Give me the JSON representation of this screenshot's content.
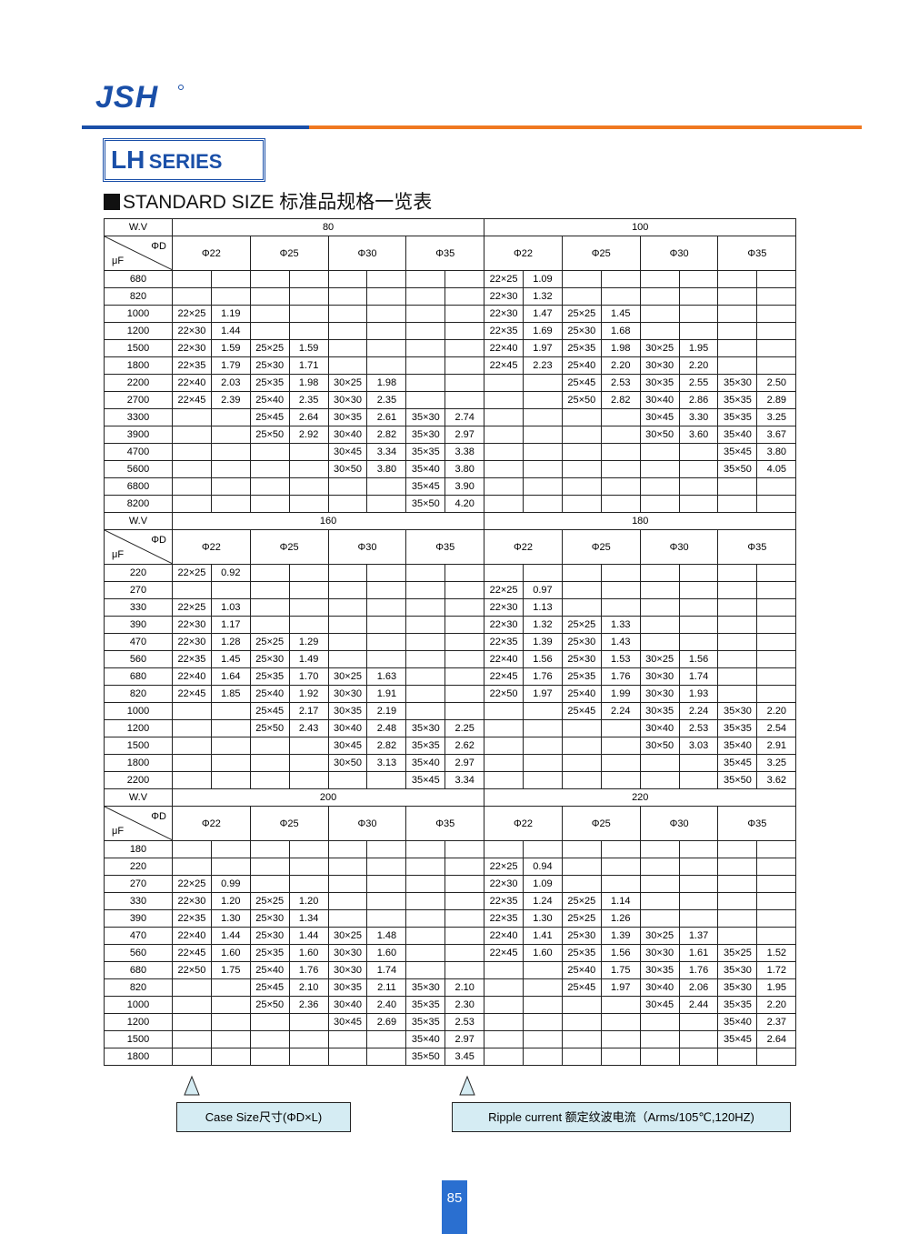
{
  "header": {
    "logo": "JSH",
    "series_main": "LH",
    "series_sub": "SERIES",
    "title": "STANDARD SIZE 标准品规格一览表"
  },
  "table": {
    "wv_label": "W.V",
    "d_label": "ΦD",
    "uf_label": "μF",
    "diameters": [
      "Φ22",
      "Φ25",
      "Φ30",
      "Φ35"
    ],
    "blocks": [
      {
        "wv": [
          "80",
          "100"
        ],
        "rows": [
          {
            "uf": "680",
            "cells": [
              null,
              null,
              null,
              null,
              [
                "22×25",
                "1.09"
              ],
              null,
              null,
              null
            ]
          },
          {
            "uf": "820",
            "cells": [
              null,
              null,
              null,
              null,
              [
                "22×30",
                "1.32"
              ],
              null,
              null,
              null
            ]
          },
          {
            "uf": "1000",
            "cells": [
              [
                "22×25",
                "1.19"
              ],
              null,
              null,
              null,
              [
                "22×30",
                "1.47"
              ],
              [
                "25×25",
                "1.45"
              ],
              null,
              null
            ]
          },
          {
            "uf": "1200",
            "cells": [
              [
                "22×30",
                "1.44"
              ],
              null,
              null,
              null,
              [
                "22×35",
                "1.69"
              ],
              [
                "25×30",
                "1.68"
              ],
              null,
              null
            ]
          },
          {
            "uf": "1500",
            "cells": [
              [
                "22×30",
                "1.59"
              ],
              [
                "25×25",
                "1.59"
              ],
              null,
              null,
              [
                "22×40",
                "1.97"
              ],
              [
                "25×35",
                "1.98"
              ],
              [
                "30×25",
                "1.95"
              ],
              null
            ]
          },
          {
            "uf": "1800",
            "cells": [
              [
                "22×35",
                "1.79"
              ],
              [
                "25×30",
                "1.71"
              ],
              null,
              null,
              [
                "22×45",
                "2.23"
              ],
              [
                "25×40",
                "2.20"
              ],
              [
                "30×30",
                "2.20"
              ],
              null
            ]
          },
          {
            "uf": "2200",
            "cells": [
              [
                "22×40",
                "2.03"
              ],
              [
                "25×35",
                "1.98"
              ],
              [
                "30×25",
                "1.98"
              ],
              null,
              null,
              [
                "25×45",
                "2.53"
              ],
              [
                "30×35",
                "2.55"
              ],
              [
                "35×30",
                "2.50"
              ]
            ]
          },
          {
            "uf": "2700",
            "cells": [
              [
                "22×45",
                "2.39"
              ],
              [
                "25×40",
                "2.35"
              ],
              [
                "30×30",
                "2.35"
              ],
              null,
              null,
              [
                "25×50",
                "2.82"
              ],
              [
                "30×40",
                "2.86"
              ],
              [
                "35×35",
                "2.89"
              ]
            ]
          },
          {
            "uf": "3300",
            "cells": [
              null,
              [
                "25×45",
                "2.64"
              ],
              [
                "30×35",
                "2.61"
              ],
              [
                "35×30",
                "2.74"
              ],
              null,
              null,
              [
                "30×45",
                "3.30"
              ],
              [
                "35×35",
                "3.25"
              ]
            ]
          },
          {
            "uf": "3900",
            "cells": [
              null,
              [
                "25×50",
                "2.92"
              ],
              [
                "30×40",
                "2.82"
              ],
              [
                "35×30",
                "2.97"
              ],
              null,
              null,
              [
                "30×50",
                "3.60"
              ],
              [
                "35×40",
                "3.67"
              ]
            ]
          },
          {
            "uf": "4700",
            "cells": [
              null,
              null,
              [
                "30×45",
                "3.34"
              ],
              [
                "35×35",
                "3.38"
              ],
              null,
              null,
              null,
              [
                "35×45",
                "3.80"
              ]
            ]
          },
          {
            "uf": "5600",
            "cells": [
              null,
              null,
              [
                "30×50",
                "3.80"
              ],
              [
                "35×40",
                "3.80"
              ],
              null,
              null,
              null,
              [
                "35×50",
                "4.05"
              ]
            ]
          },
          {
            "uf": "6800",
            "cells": [
              null,
              null,
              null,
              [
                "35×45",
                "3.90"
              ],
              null,
              null,
              null,
              null
            ]
          },
          {
            "uf": "8200",
            "cells": [
              null,
              null,
              null,
              [
                "35×50",
                "4.20"
              ],
              null,
              null,
              null,
              null
            ]
          }
        ]
      },
      {
        "wv": [
          "160",
          "180"
        ],
        "rows": [
          {
            "uf": "220",
            "cells": [
              [
                "22×25",
                "0.92"
              ],
              null,
              null,
              null,
              null,
              null,
              null,
              null
            ]
          },
          {
            "uf": "270",
            "cells": [
              null,
              null,
              null,
              null,
              [
                "22×25",
                "0.97"
              ],
              null,
              null,
              null
            ]
          },
          {
            "uf": "330",
            "cells": [
              [
                "22×25",
                "1.03"
              ],
              null,
              null,
              null,
              [
                "22×30",
                "1.13"
              ],
              null,
              null,
              null
            ]
          },
          {
            "uf": "390",
            "cells": [
              [
                "22×30",
                "1.17"
              ],
              null,
              null,
              null,
              [
                "22×30",
                "1.32"
              ],
              [
                "25×25",
                "1.33"
              ],
              null,
              null
            ]
          },
          {
            "uf": "470",
            "cells": [
              [
                "22×30",
                "1.28"
              ],
              [
                "25×25",
                "1.29"
              ],
              null,
              null,
              [
                "22×35",
                "1.39"
              ],
              [
                "25×30",
                "1.43"
              ],
              null,
              null
            ]
          },
          {
            "uf": "560",
            "cells": [
              [
                "22×35",
                "1.45"
              ],
              [
                "25×30",
                "1.49"
              ],
              null,
              null,
              [
                "22×40",
                "1.56"
              ],
              [
                "25×30",
                "1.53"
              ],
              [
                "30×25",
                "1.56"
              ],
              null
            ]
          },
          {
            "uf": "680",
            "cells": [
              [
                "22×40",
                "1.64"
              ],
              [
                "25×35",
                "1.70"
              ],
              [
                "30×25",
                "1.63"
              ],
              null,
              [
                "22×45",
                "1.76"
              ],
              [
                "25×35",
                "1.76"
              ],
              [
                "30×30",
                "1.74"
              ],
              null
            ]
          },
          {
            "uf": "820",
            "cells": [
              [
                "22×45",
                "1.85"
              ],
              [
                "25×40",
                "1.92"
              ],
              [
                "30×30",
                "1.91"
              ],
              null,
              [
                "22×50",
                "1.97"
              ],
              [
                "25×40",
                "1.99"
              ],
              [
                "30×30",
                "1.93"
              ],
              null
            ]
          },
          {
            "uf": "1000",
            "cells": [
              null,
              [
                "25×45",
                "2.17"
              ],
              [
                "30×35",
                "2.19"
              ],
              null,
              null,
              [
                "25×45",
                "2.24"
              ],
              [
                "30×35",
                "2.24"
              ],
              [
                "35×30",
                "2.20"
              ]
            ]
          },
          {
            "uf": "1200",
            "cells": [
              null,
              [
                "25×50",
                "2.43"
              ],
              [
                "30×40",
                "2.48"
              ],
              [
                "35×30",
                "2.25"
              ],
              null,
              null,
              [
                "30×40",
                "2.53"
              ],
              [
                "35×35",
                "2.54"
              ]
            ]
          },
          {
            "uf": "1500",
            "cells": [
              null,
              null,
              [
                "30×45",
                "2.82"
              ],
              [
                "35×35",
                "2.62"
              ],
              null,
              null,
              [
                "30×50",
                "3.03"
              ],
              [
                "35×40",
                "2.91"
              ]
            ]
          },
          {
            "uf": "1800",
            "cells": [
              null,
              null,
              [
                "30×50",
                "3.13"
              ],
              [
                "35×40",
                "2.97"
              ],
              null,
              null,
              null,
              [
                "35×45",
                "3.25"
              ]
            ]
          },
          {
            "uf": "2200",
            "cells": [
              null,
              null,
              null,
              [
                "35×45",
                "3.34"
              ],
              null,
              null,
              null,
              [
                "35×50",
                "3.62"
              ]
            ]
          }
        ]
      },
      {
        "wv": [
          "200",
          "220"
        ],
        "rows": [
          {
            "uf": "180",
            "cells": [
              null,
              null,
              null,
              null,
              null,
              null,
              null,
              null
            ]
          },
          {
            "uf": "220",
            "cells": [
              null,
              null,
              null,
              null,
              [
                "22×25",
                "0.94"
              ],
              null,
              null,
              null
            ]
          },
          {
            "uf": "270",
            "cells": [
              [
                "22×25",
                "0.99"
              ],
              null,
              null,
              null,
              [
                "22×30",
                "1.09"
              ],
              null,
              null,
              null
            ]
          },
          {
            "uf": "330",
            "cells": [
              [
                "22×30",
                "1.20"
              ],
              [
                "25×25",
                "1.20"
              ],
              null,
              null,
              [
                "22×35",
                "1.24"
              ],
              [
                "25×25",
                "1.14"
              ],
              null,
              null
            ]
          },
          {
            "uf": "390",
            "cells": [
              [
                "22×35",
                "1.30"
              ],
              [
                "25×30",
                "1.34"
              ],
              null,
              null,
              [
                "22×35",
                "1.30"
              ],
              [
                "25×25",
                "1.26"
              ],
              null,
              null
            ]
          },
          {
            "uf": "470",
            "cells": [
              [
                "22×40",
                "1.44"
              ],
              [
                "25×30",
                "1.44"
              ],
              [
                "30×25",
                "1.48"
              ],
              null,
              [
                "22×40",
                "1.41"
              ],
              [
                "25×30",
                "1.39"
              ],
              [
                "30×25",
                "1.37"
              ],
              null
            ]
          },
          {
            "uf": "560",
            "cells": [
              [
                "22×45",
                "1.60"
              ],
              [
                "25×35",
                "1.60"
              ],
              [
                "30×30",
                "1.60"
              ],
              null,
              [
                "22×45",
                "1.60"
              ],
              [
                "25×35",
                "1.56"
              ],
              [
                "30×30",
                "1.61"
              ],
              [
                "35×25",
                "1.52"
              ]
            ]
          },
          {
            "uf": "680",
            "cells": [
              [
                "22×50",
                "1.75"
              ],
              [
                "25×40",
                "1.76"
              ],
              [
                "30×30",
                "1.74"
              ],
              null,
              null,
              [
                "25×40",
                "1.75"
              ],
              [
                "30×35",
                "1.76"
              ],
              [
                "35×30",
                "1.72"
              ]
            ]
          },
          {
            "uf": "820",
            "cells": [
              null,
              [
                "25×45",
                "2.10"
              ],
              [
                "30×35",
                "2.11"
              ],
              [
                "35×30",
                "2.10"
              ],
              null,
              [
                "25×45",
                "1.97"
              ],
              [
                "30×40",
                "2.06"
              ],
              [
                "35×30",
                "1.95"
              ]
            ]
          },
          {
            "uf": "1000",
            "cells": [
              null,
              [
                "25×50",
                "2.36"
              ],
              [
                "30×40",
                "2.40"
              ],
              [
                "35×35",
                "2.30"
              ],
              null,
              null,
              [
                "30×45",
                "2.44"
              ],
              [
                "35×35",
                "2.20"
              ]
            ]
          },
          {
            "uf": "1200",
            "cells": [
              null,
              null,
              [
                "30×45",
                "2.69"
              ],
              [
                "35×35",
                "2.53"
              ],
              null,
              null,
              null,
              [
                "35×40",
                "2.37"
              ]
            ]
          },
          {
            "uf": "1500",
            "cells": [
              null,
              null,
              null,
              [
                "35×40",
                "2.97"
              ],
              null,
              null,
              null,
              [
                "35×45",
                "2.64"
              ]
            ]
          },
          {
            "uf": "1800",
            "cells": [
              null,
              null,
              null,
              [
                "35×50",
                "3.45"
              ],
              null,
              null,
              null,
              null
            ]
          }
        ]
      }
    ]
  },
  "footer": {
    "note_case": "Case  Size尺寸(ΦD×L)",
    "note_ripple": "Ripple current 额定纹波电流（Arms/105℃,120HZ)",
    "page": "85"
  }
}
